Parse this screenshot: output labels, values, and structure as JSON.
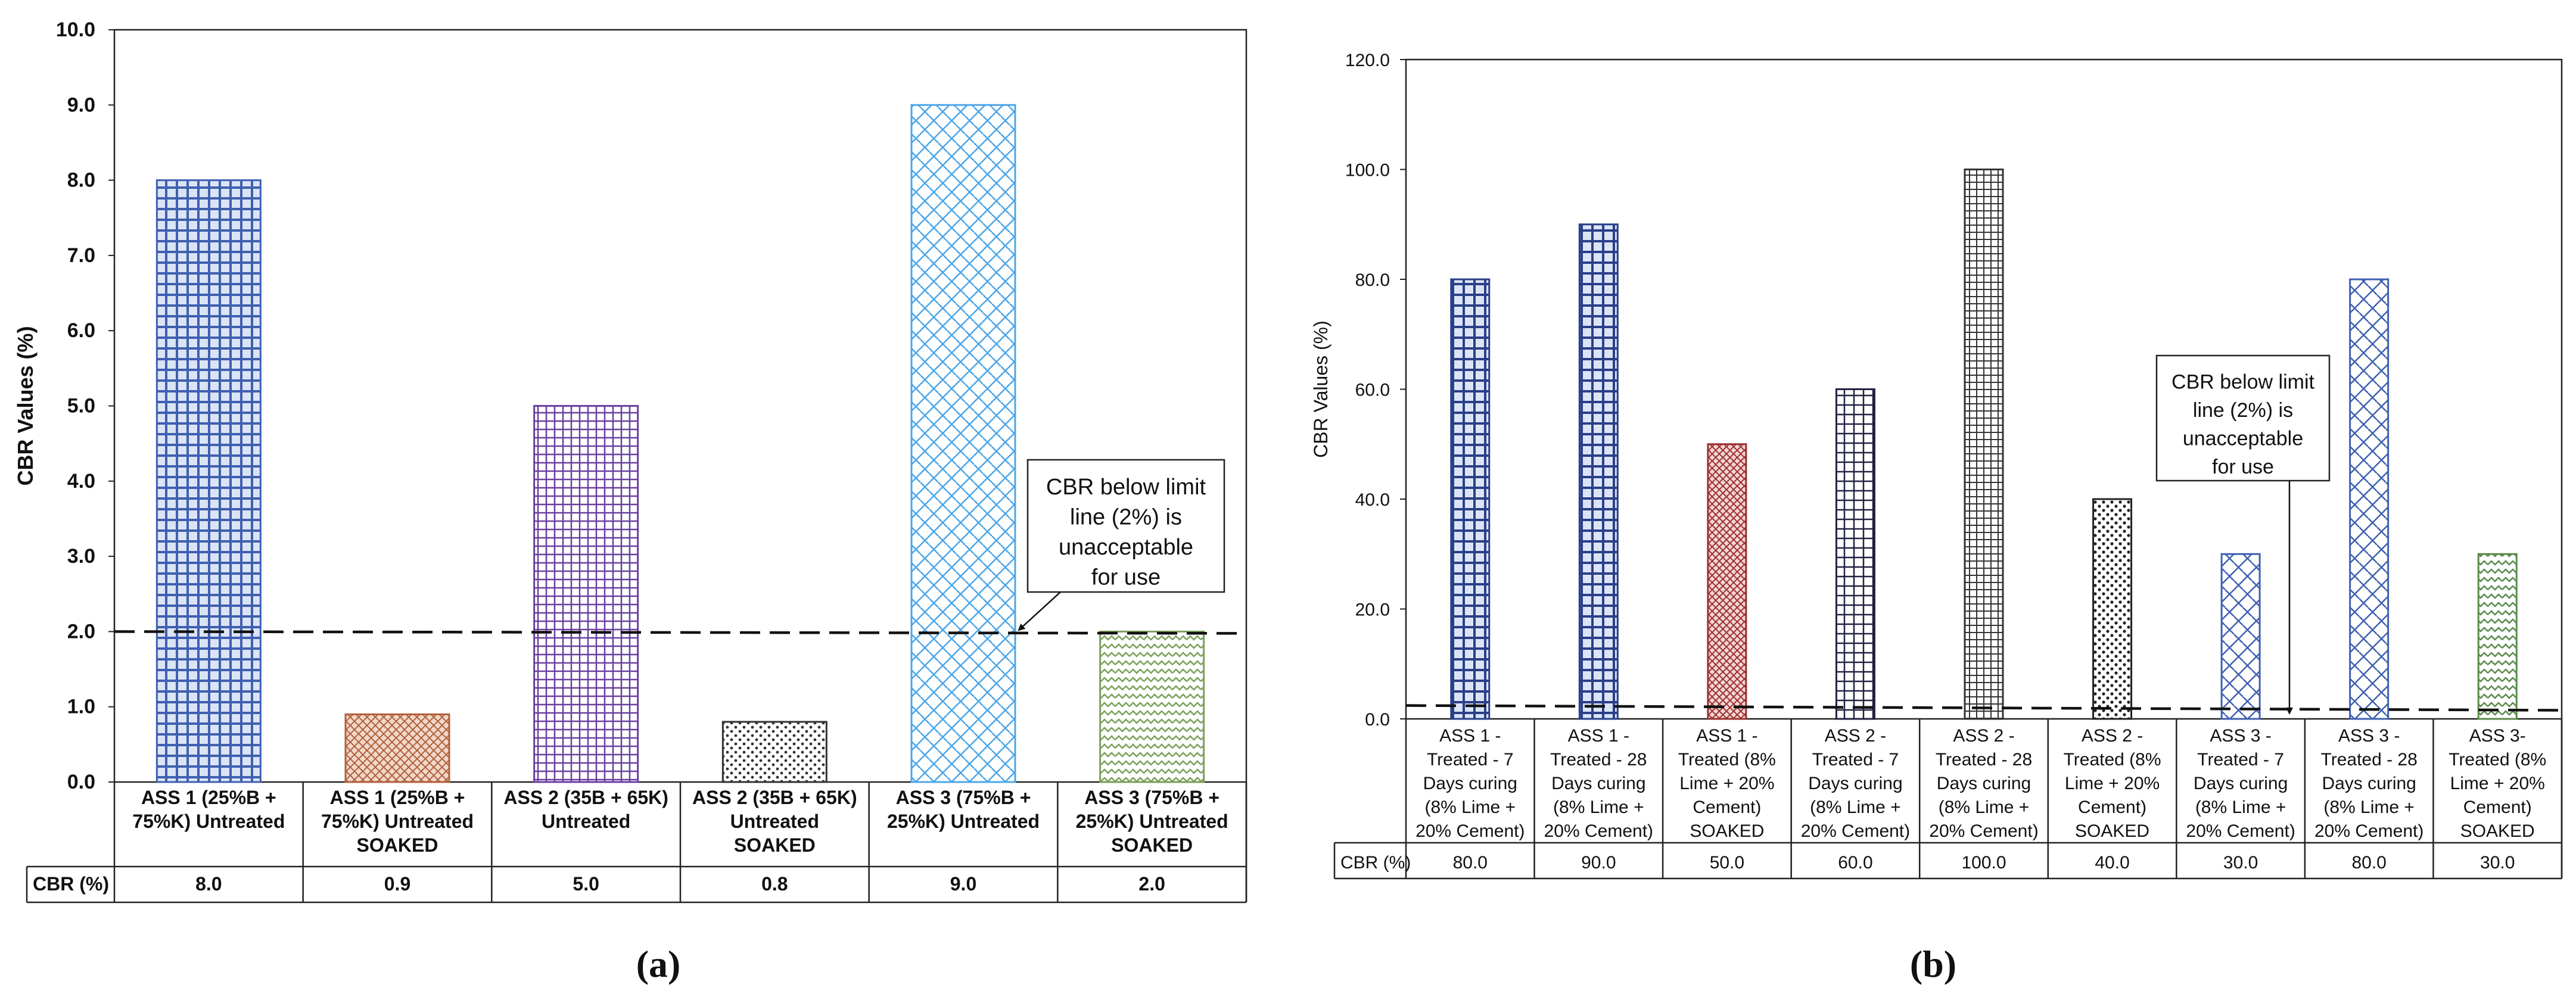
{
  "chart_data": [
    {
      "panel": "a",
      "type": "bar",
      "title": "",
      "xlabel": "",
      "ylabel": "CBR Values (%)",
      "ylim": [
        0,
        10
      ],
      "yticks": [
        "0.0",
        "1.0",
        "2.0",
        "3.0",
        "4.0",
        "5.0",
        "6.0",
        "7.0",
        "8.0",
        "9.0",
        "10.0"
      ],
      "categories": [
        [
          "ASS 1 (25%B +",
          "75%K) Untreated"
        ],
        [
          "ASS 1 (25%B +",
          "75%K) Untreated",
          "SOAKED"
        ],
        [
          "ASS 2 (35B + 65K)",
          "Untreated"
        ],
        [
          "ASS 2 (35B + 65K)",
          "Untreated",
          "SOAKED"
        ],
        [
          "ASS 3 (75%B +",
          "25%K) Untreated"
        ],
        [
          "ASS 3 (75%B +",
          "25%K) Untreated",
          "SOAKED"
        ]
      ],
      "values": [
        8.0,
        0.9,
        5.0,
        0.8,
        9.0,
        2.0
      ],
      "table_header": "CBR (%)",
      "table_values": [
        "8.0",
        "0.9",
        "5.0",
        "0.8",
        "9.0",
        "2.0"
      ],
      "bar_colors": [
        "#3f5fb0",
        "#b0603c",
        "#6a3fa0",
        "#333333",
        "#4da6e8",
        "#7aa05a"
      ],
      "limit_line": 2.0,
      "annotation": [
        "CBR below limit",
        "line (2%) is",
        "unacceptable",
        "for use"
      ],
      "caption": "(a)"
    },
    {
      "panel": "b",
      "type": "bar",
      "title": "",
      "xlabel": "",
      "ylabel": "CBR Values (%)",
      "ylim": [
        0,
        120
      ],
      "yticks": [
        "0.0",
        "20.0",
        "40.0",
        "60.0",
        "80.0",
        "100.0",
        "120.0"
      ],
      "categories": [
        [
          "ASS 1 -",
          "Treated - 7",
          "Days curing",
          "(8% Lime +",
          "20% Cement)"
        ],
        [
          "ASS 1 -",
          "Treated - 28",
          "Days curing",
          "(8% Lime +",
          "20% Cement)"
        ],
        [
          "ASS 1 -",
          "Treated (8%",
          "Lime + 20%",
          "Cement)",
          "SOAKED"
        ],
        [
          "ASS 2 -",
          "Treated - 7",
          "Days curing",
          "(8% Lime +",
          "20% Cement)"
        ],
        [
          "ASS 2 -",
          "Treated - 28",
          "Days curing",
          "(8% Lime +",
          "20% Cement)"
        ],
        [
          "ASS 2 -",
          "Treated (8%",
          "Lime + 20%",
          "Cement)",
          "SOAKED"
        ],
        [
          "ASS 3 -",
          "Treated - 7",
          "Days curing",
          "(8% Lime +",
          "20% Cement)"
        ],
        [
          "ASS 3 -",
          "Treated - 28",
          "Days curing",
          "(8% Lime +",
          "20% Cement)"
        ],
        [
          "ASS 3-",
          "Treated (8%",
          "Lime + 20%",
          "Cement)",
          "SOAKED"
        ]
      ],
      "values": [
        80.0,
        90.0,
        50.0,
        60.0,
        100.0,
        40.0,
        30.0,
        80.0,
        30.0
      ],
      "table_header": "CBR (%)",
      "table_values": [
        "80.0",
        "90.0",
        "50.0",
        "60.0",
        "100.0",
        "40.0",
        "30.0",
        "80.0",
        "30.0"
      ],
      "bar_colors": [
        "#3f5fb0",
        "#3f5fb0",
        "#b0403c",
        "#333355",
        "#333333",
        "#333333",
        "#3f5fb0",
        "#3f5fb0",
        "#5a8a4a"
      ],
      "limit_line": 2.0,
      "annotation": [
        "CBR below limit",
        "line (2%) is",
        "unacceptable",
        "for use"
      ],
      "caption": "(b)"
    }
  ]
}
